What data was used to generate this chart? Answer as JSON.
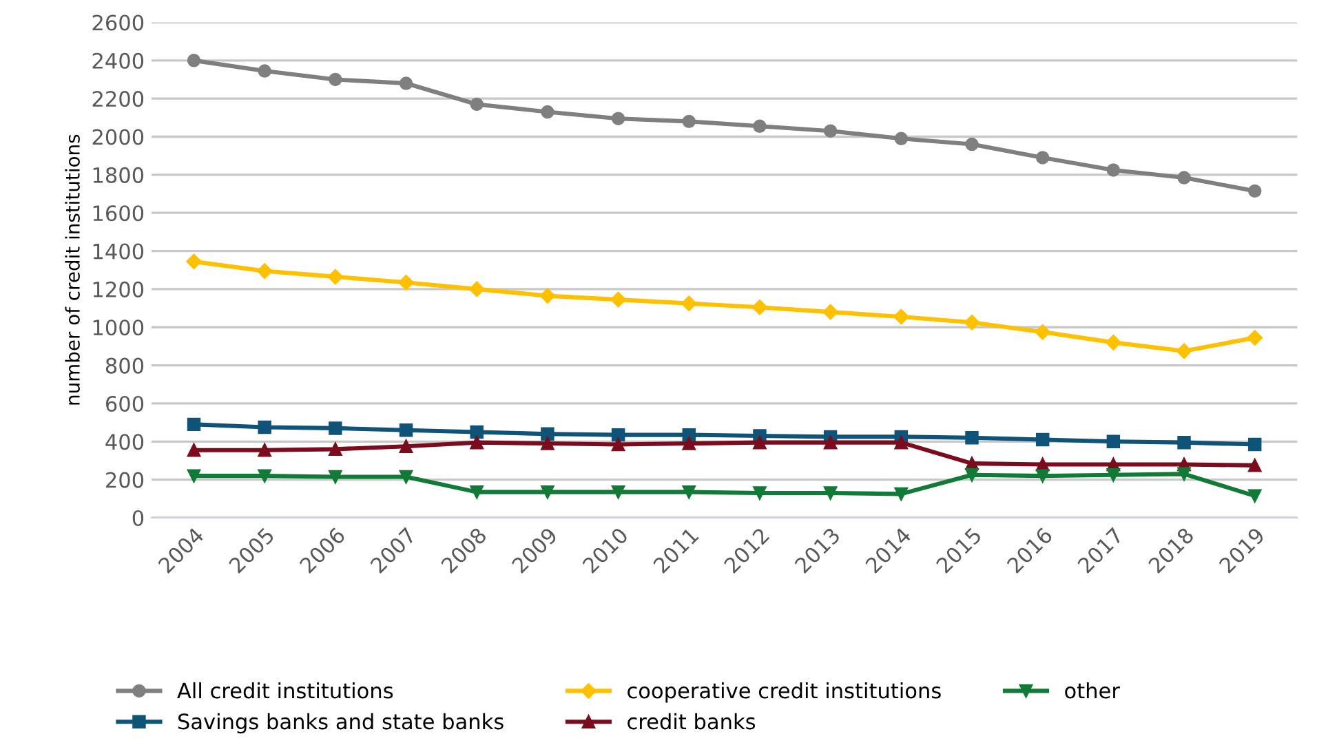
{
  "chart_data": {
    "type": "line",
    "ylabel": "number of credit institutions",
    "categories": [
      "2004",
      "2005",
      "2006",
      "2007",
      "2008",
      "2009",
      "2010",
      "2011",
      "2012",
      "2013",
      "2014",
      "2015",
      "2016",
      "2017",
      "2018",
      "2019"
    ],
    "series": [
      {
        "name": "All credit institutions",
        "color": "#7f7f7f",
        "marker": "circle",
        "values": [
          2400,
          2345,
          2300,
          2280,
          2170,
          2130,
          2095,
          2080,
          2055,
          2030,
          1990,
          1960,
          1890,
          1825,
          1785,
          1715
        ]
      },
      {
        "name": "cooperative credit institutions",
        "color": "#ffc000",
        "marker": "diamond",
        "values": [
          1345,
          1295,
          1265,
          1235,
          1200,
          1165,
          1145,
          1125,
          1105,
          1080,
          1055,
          1025,
          975,
          920,
          875,
          945
        ]
      },
      {
        "name": "Savings banks and state banks",
        "color": "#0f5478",
        "marker": "square",
        "values": [
          490,
          475,
          470,
          460,
          450,
          440,
          435,
          435,
          430,
          425,
          425,
          420,
          410,
          400,
          395,
          385
        ]
      },
      {
        "name": "credit banks",
        "color": "#7b0c1e",
        "marker": "triangle",
        "values": [
          355,
          355,
          360,
          375,
          395,
          390,
          385,
          390,
          395,
          395,
          395,
          285,
          280,
          280,
          280,
          275
        ]
      },
      {
        "name": "other",
        "color": "#127a37",
        "marker": "triangle_down",
        "values": [
          220,
          220,
          215,
          215,
          135,
          135,
          135,
          135,
          130,
          130,
          125,
          225,
          220,
          225,
          230,
          115
        ]
      }
    ],
    "ylim": [
      0,
      2600
    ],
    "yticks": [
      0,
      200,
      400,
      600,
      800,
      1000,
      1200,
      1400,
      1600,
      1800,
      2000,
      2200,
      2400,
      2600
    ],
    "grid": "y",
    "legend": "bottom",
    "line_style": "solid"
  }
}
